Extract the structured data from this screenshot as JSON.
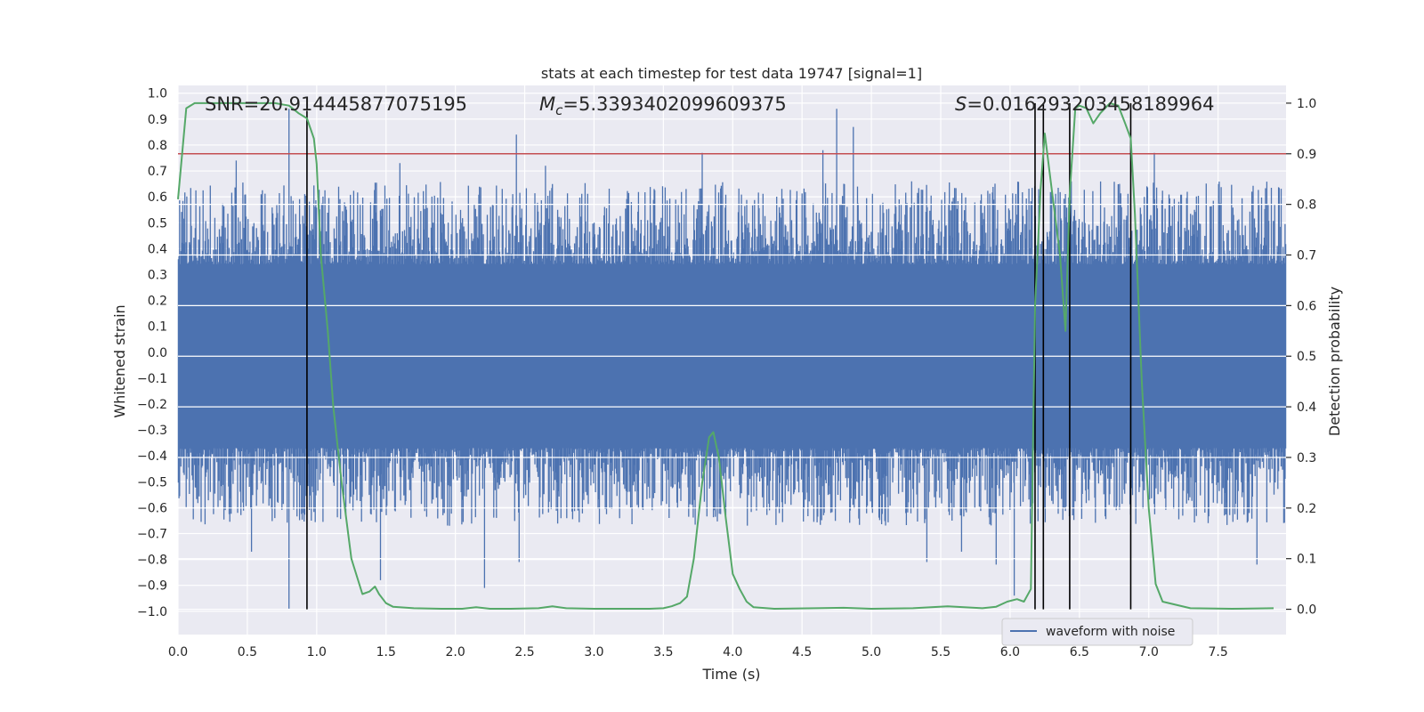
{
  "chart_data": {
    "type": "line",
    "title": "stats at each timestep for test data 19747 [signal=1]",
    "xlabel": "Time (s)",
    "ylabel": "Whitened strain",
    "ylabel_right": "Detection probability",
    "xlim": [
      0.0,
      7.99
    ],
    "ylim": [
      -1.09,
      1.03
    ],
    "ylim_right": [
      -0.05,
      1.035
    ],
    "x_ticks": [
      0.0,
      0.5,
      1.0,
      1.5,
      2.0,
      2.5,
      3.0,
      3.5,
      4.0,
      4.5,
      5.0,
      5.5,
      6.0,
      6.5,
      7.0,
      7.5
    ],
    "x_tick_labels": [
      "0.0",
      "0.5",
      "1.0",
      "1.5",
      "2.0",
      "2.5",
      "3.0",
      "3.5",
      "4.0",
      "4.5",
      "5.0",
      "5.5",
      "6.0",
      "6.5",
      "7.0",
      "7.5"
    ],
    "y_ticks": [
      1.0,
      0.9,
      0.8,
      0.7,
      0.6,
      0.5,
      0.4,
      0.3,
      0.2,
      0.1,
      0.0,
      -0.1,
      -0.2,
      -0.3,
      -0.4,
      -0.5,
      -0.6,
      -0.7,
      -0.8,
      -0.9,
      -1.0
    ],
    "y_tick_labels": [
      "1.0",
      "0.9",
      "0.8",
      "0.7",
      "0.6",
      "0.5",
      "0.4",
      "0.3",
      "0.2",
      "0.1",
      "0.0",
      "−0.1",
      "−0.2",
      "−0.3",
      "−0.4",
      "−0.5",
      "−0.6",
      "−0.7",
      "−0.8",
      "−0.9",
      "−1.0"
    ],
    "y_ticks_right": [
      1.0,
      0.9,
      0.8,
      0.7,
      0.6,
      0.5,
      0.4,
      0.3,
      0.2,
      0.1,
      0.0
    ],
    "y_tick_labels_right": [
      "1.0",
      "0.9",
      "0.8",
      "0.7",
      "0.6",
      "0.5",
      "0.4",
      "0.3",
      "0.2",
      "0.1",
      "0.0"
    ],
    "annotations": {
      "snr": "SNR=20.914445877075195",
      "mc_symbol": "M",
      "mc_sub": "c",
      "mc_value": "=5.3393402099609375",
      "s_symbol": "S",
      "s_value": "=0.016293203458189964"
    },
    "threshold": 0.9,
    "detection_markers": [
      0.93,
      6.18,
      6.24,
      6.43,
      6.87
    ],
    "legend": {
      "label": "waveform with noise",
      "position": "lower-right"
    },
    "waveform": {
      "name": "waveform with noise",
      "color": "#4c72b0",
      "peaks_pos": [
        [
          0.8,
          0.94
        ],
        [
          4.75,
          0.94
        ],
        [
          4.87,
          0.87
        ],
        [
          2.44,
          0.84
        ],
        [
          4.65,
          0.78
        ],
        [
          3.78,
          0.77
        ],
        [
          7.04,
          0.77
        ],
        [
          0.42,
          0.74
        ],
        [
          1.6,
          0.73
        ],
        [
          2.65,
          0.72
        ]
      ],
      "peaks_neg": [
        [
          0.8,
          -0.99
        ],
        [
          6.03,
          -0.94
        ],
        [
          2.21,
          -0.91
        ],
        [
          1.46,
          -0.88
        ],
        [
          7.78,
          -0.82
        ],
        [
          5.9,
          -0.82
        ],
        [
          5.4,
          -0.81
        ],
        [
          2.46,
          -0.81
        ],
        [
          0.53,
          -0.77
        ],
        [
          5.65,
          -0.77
        ]
      ]
    },
    "probability": {
      "color": "#55a868",
      "x": [
        0.0,
        0.06,
        0.12,
        0.3,
        0.5,
        0.7,
        0.8,
        0.87,
        0.93,
        0.98,
        1.0,
        1.03,
        1.08,
        1.12,
        1.18,
        1.25,
        1.33,
        1.38,
        1.42,
        1.45,
        1.5,
        1.55,
        1.7,
        1.9,
        2.05,
        2.15,
        2.25,
        2.4,
        2.6,
        2.7,
        2.8,
        3.0,
        3.2,
        3.4,
        3.5,
        3.56,
        3.62,
        3.67,
        3.72,
        3.78,
        3.83,
        3.86,
        3.9,
        3.95,
        4.0,
        4.05,
        4.1,
        4.15,
        4.3,
        4.6,
        4.8,
        5.0,
        5.3,
        5.55,
        5.8,
        5.9,
        5.98,
        6.05,
        6.1,
        6.15,
        6.18,
        6.22,
        6.25,
        6.3,
        6.36,
        6.4,
        6.43,
        6.47,
        6.5,
        6.55,
        6.6,
        6.65,
        6.72,
        6.78,
        6.83,
        6.87,
        6.9,
        6.95,
        7.0,
        7.05,
        7.1,
        7.3,
        7.6,
        7.9
      ],
      "y": [
        0.81,
        0.99,
        1.0,
        1.0,
        1.0,
        1.0,
        0.995,
        0.98,
        0.97,
        0.93,
        0.88,
        0.7,
        0.55,
        0.4,
        0.25,
        0.1,
        0.03,
        0.035,
        0.045,
        0.03,
        0.012,
        0.005,
        0.002,
        0.001,
        0.001,
        0.004,
        0.001,
        0.001,
        0.002,
        0.006,
        0.002,
        0.001,
        0.001,
        0.001,
        0.002,
        0.006,
        0.012,
        0.025,
        0.1,
        0.25,
        0.34,
        0.35,
        0.3,
        0.18,
        0.07,
        0.04,
        0.015,
        0.004,
        0.001,
        0.002,
        0.003,
        0.001,
        0.002,
        0.006,
        0.002,
        0.005,
        0.015,
        0.02,
        0.015,
        0.04,
        0.6,
        0.83,
        0.94,
        0.83,
        0.7,
        0.55,
        0.82,
        0.99,
        0.995,
        0.99,
        0.96,
        0.98,
        1.0,
        0.995,
        0.96,
        0.93,
        0.78,
        0.45,
        0.2,
        0.05,
        0.015,
        0.002,
        0.001,
        0.002
      ]
    },
    "grid": true
  }
}
